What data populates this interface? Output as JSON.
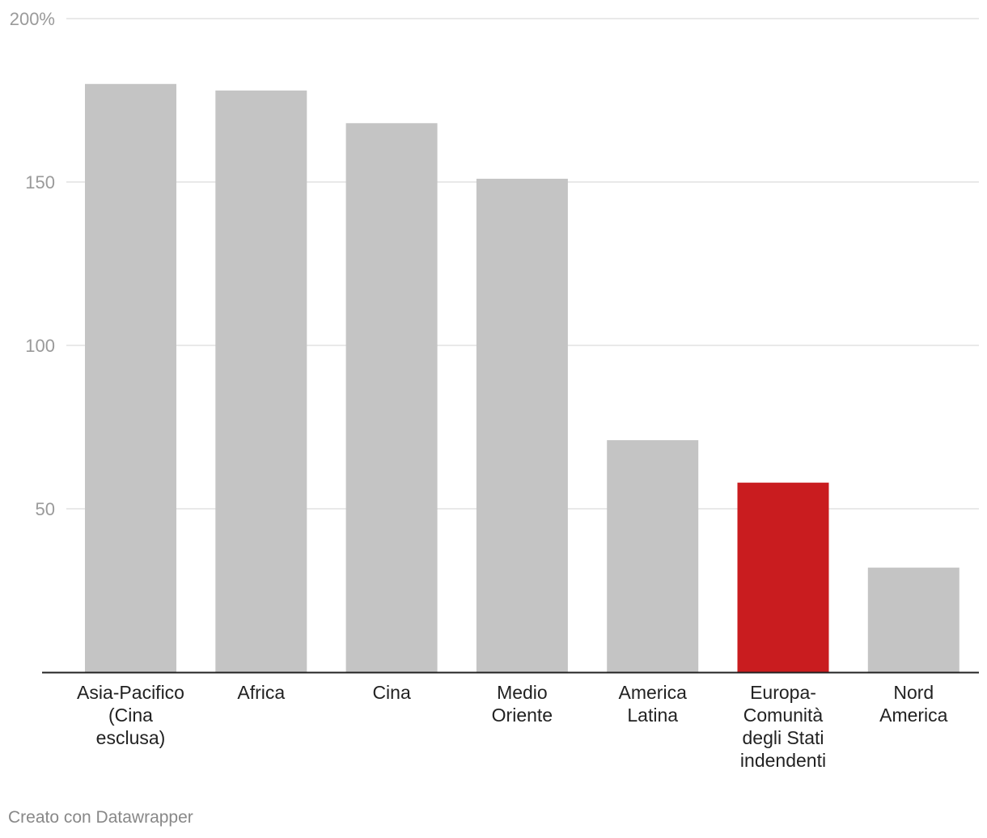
{
  "chart_data": {
    "type": "bar",
    "categories": [
      [
        "Asia-Pacifico",
        "(Cina",
        "esclusa)"
      ],
      [
        "Africa"
      ],
      [
        "Cina"
      ],
      [
        "Medio",
        "Oriente"
      ],
      [
        "America",
        "Latina"
      ],
      [
        "Europa-",
        "Comunità",
        "degli Stati",
        "indendenti"
      ],
      [
        "Nord",
        "America"
      ]
    ],
    "values": [
      180,
      178,
      168,
      151,
      71,
      58,
      32
    ],
    "highlight_index": 5,
    "yticks": [
      {
        "value": 50,
        "label": "50"
      },
      {
        "value": 100,
        "label": "100"
      },
      {
        "value": 150,
        "label": "150"
      },
      {
        "value": 200,
        "label": "200%"
      }
    ],
    "ylim": [
      0,
      200
    ],
    "grid": true,
    "colors": {
      "bar": "#c4c4c4",
      "highlight": "#c91c1f",
      "grid": "#e2e2e2",
      "baseline": "#222222"
    }
  },
  "footer": {
    "credit": "Creato con Datawrapper"
  }
}
